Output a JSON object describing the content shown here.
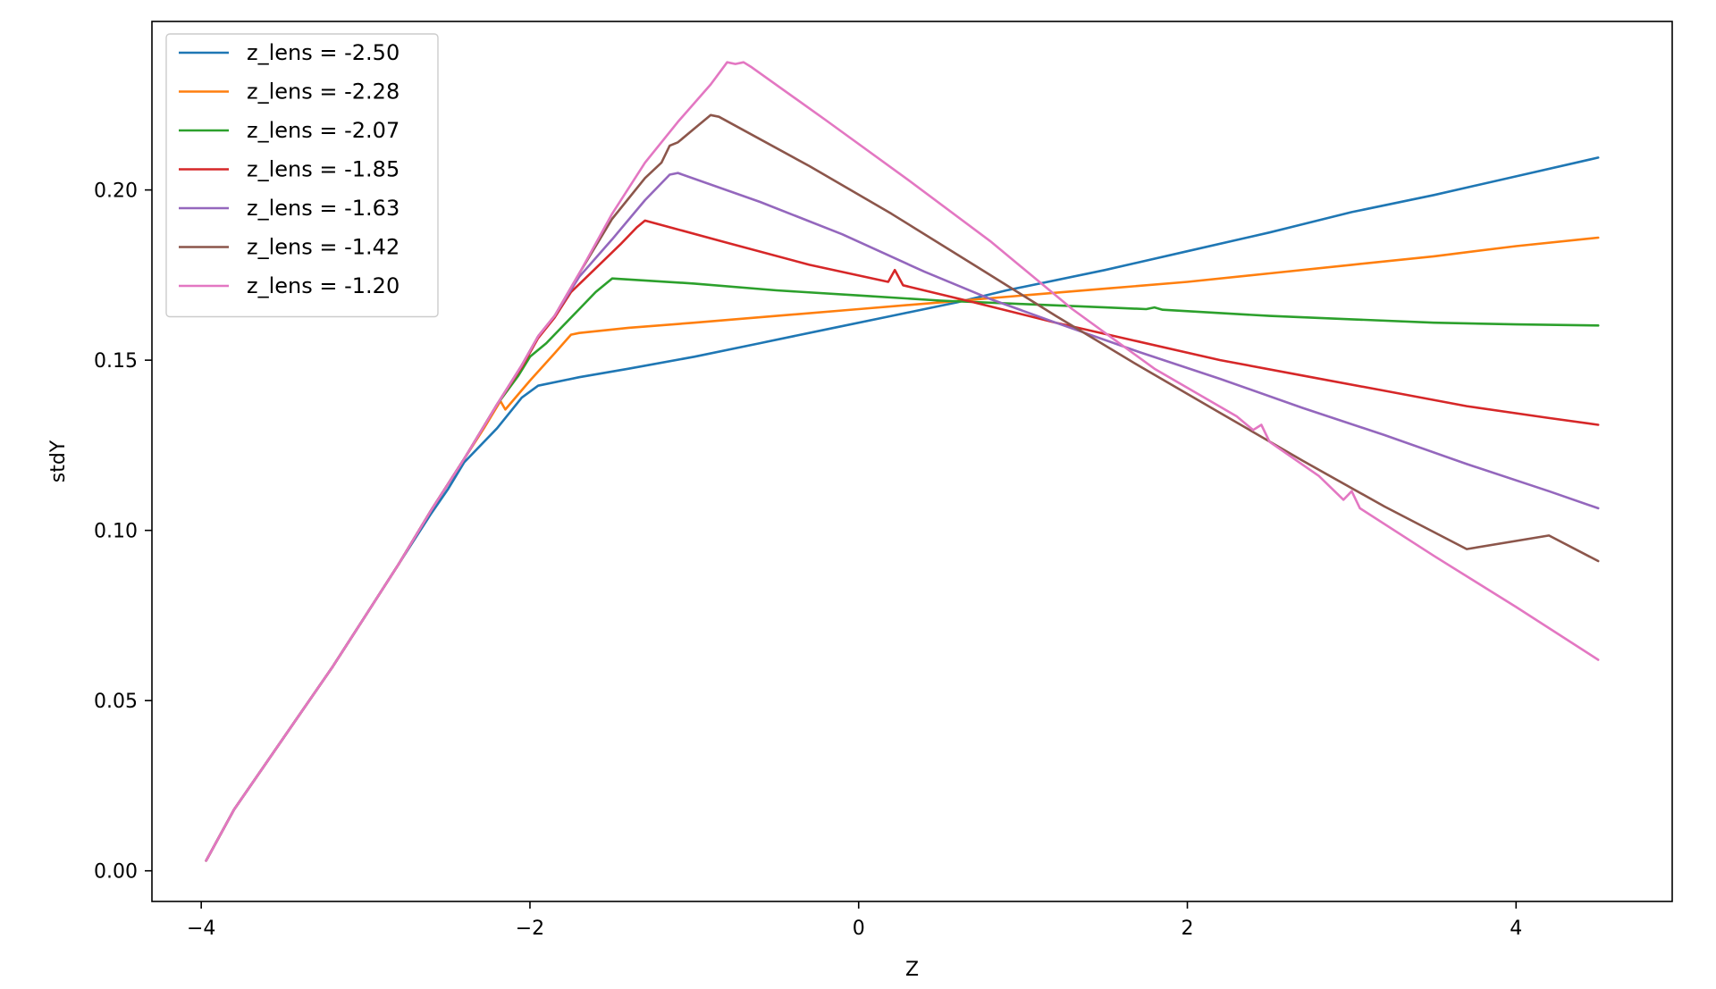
{
  "chart_data": {
    "type": "line",
    "title": "",
    "xlabel": "Z",
    "ylabel": "stdY",
    "xlim": [
      -4.3,
      4.95
    ],
    "ylim": [
      -0.009,
      0.2495
    ],
    "xticks": [
      -4,
      -2,
      0,
      2,
      4
    ],
    "xtick_labels": [
      "−4",
      "−2",
      "0",
      "2",
      "4"
    ],
    "yticks": [
      0.0,
      0.05,
      0.1,
      0.15,
      0.2
    ],
    "ytick_labels": [
      "0.00",
      "0.05",
      "0.10",
      "0.15",
      "0.20"
    ],
    "grid": false,
    "legend_position": "upper-left",
    "series": [
      {
        "name": "z_lens = -2.50",
        "color": "#1f77b4",
        "x": [
          -3.97,
          -3.8,
          -3.6,
          -3.4,
          -3.2,
          -3.0,
          -2.8,
          -2.6,
          -2.5,
          -2.4,
          -2.2,
          -2.05,
          -1.95,
          -1.7,
          -1.4,
          -1.0,
          -0.6,
          -0.2,
          0.2,
          0.6,
          0.9,
          1.5,
          2.0,
          2.5,
          3.0,
          3.5,
          4.0,
          4.5
        ],
        "y": [
          0.003,
          0.018,
          0.032,
          0.046,
          0.06,
          0.075,
          0.09,
          0.105,
          0.112,
          0.12,
          0.13,
          0.139,
          0.1425,
          0.145,
          0.1475,
          0.151,
          0.155,
          0.159,
          0.163,
          0.167,
          0.1705,
          0.1765,
          0.182,
          0.1875,
          0.1935,
          0.1985,
          0.204,
          0.2095
        ]
      },
      {
        "name": "z_lens = -2.28",
        "color": "#ff7f0e",
        "x": [
          -3.97,
          -3.8,
          -3.6,
          -3.4,
          -3.2,
          -3.0,
          -2.8,
          -2.6,
          -2.4,
          -2.28,
          -2.18,
          -2.15,
          -2.0,
          -1.85,
          -1.75,
          -1.7,
          -1.4,
          -1.0,
          -0.5,
          0.0,
          0.5,
          1.0,
          1.5,
          2.0,
          2.5,
          3.0,
          3.5,
          4.0,
          4.5
        ],
        "y": [
          0.003,
          0.018,
          0.032,
          0.046,
          0.06,
          0.075,
          0.09,
          0.106,
          0.121,
          0.13,
          0.138,
          0.1355,
          0.144,
          0.152,
          0.1575,
          0.158,
          0.1595,
          0.161,
          0.163,
          0.165,
          0.167,
          0.169,
          0.171,
          0.173,
          0.1755,
          0.178,
          0.1805,
          0.1835,
          0.186
        ]
      },
      {
        "name": "z_lens = -2.07",
        "color": "#2ca02c",
        "x": [
          -3.97,
          -3.8,
          -3.6,
          -3.4,
          -3.2,
          -3.0,
          -2.8,
          -2.6,
          -2.4,
          -2.2,
          -2.07,
          -2.0,
          -1.9,
          -1.8,
          -1.7,
          -1.6,
          -1.5,
          -1.0,
          -0.5,
          0.0,
          0.5,
          1.0,
          1.5,
          1.75,
          1.8,
          1.85,
          2.5,
          3.0,
          3.5,
          4.0,
          4.5
        ],
        "y": [
          0.003,
          0.018,
          0.032,
          0.046,
          0.06,
          0.075,
          0.09,
          0.106,
          0.121,
          0.137,
          0.1455,
          0.151,
          0.155,
          0.16,
          0.165,
          0.17,
          0.174,
          0.1725,
          0.1705,
          0.169,
          0.1675,
          0.1665,
          0.1655,
          0.165,
          0.1655,
          0.1648,
          0.163,
          0.162,
          0.161,
          0.1605,
          0.1602
        ]
      },
      {
        "name": "z_lens = -1.85",
        "color": "#d62728",
        "x": [
          -3.97,
          -3.8,
          -3.6,
          -3.4,
          -3.2,
          -3.0,
          -2.8,
          -2.6,
          -2.4,
          -2.2,
          -2.05,
          -1.95,
          -1.85,
          -1.75,
          -1.6,
          -1.45,
          -1.35,
          -1.3,
          -0.8,
          -0.3,
          0.18,
          0.22,
          0.27,
          0.7,
          1.2,
          1.7,
          2.2,
          2.7,
          3.2,
          3.7,
          4.2,
          4.5
        ],
        "y": [
          0.003,
          0.018,
          0.032,
          0.046,
          0.06,
          0.075,
          0.09,
          0.106,
          0.121,
          0.137,
          0.148,
          0.1565,
          0.1625,
          0.17,
          0.177,
          0.184,
          0.189,
          0.191,
          0.1845,
          0.178,
          0.173,
          0.1765,
          0.172,
          0.167,
          0.161,
          0.1555,
          0.15,
          0.1455,
          0.141,
          0.1365,
          0.133,
          0.131
        ]
      },
      {
        "name": "z_lens = -1.63",
        "color": "#9467bd",
        "x": [
          -3.97,
          -3.8,
          -3.6,
          -3.4,
          -3.2,
          -3.0,
          -2.8,
          -2.6,
          -2.4,
          -2.2,
          -2.05,
          -1.95,
          -1.85,
          -1.7,
          -1.5,
          -1.3,
          -1.15,
          -1.1,
          -0.6,
          -0.1,
          0.4,
          0.8,
          1.2,
          1.7,
          2.2,
          2.7,
          3.2,
          3.7,
          4.2,
          4.5
        ],
        "y": [
          0.003,
          0.018,
          0.032,
          0.046,
          0.06,
          0.075,
          0.09,
          0.106,
          0.121,
          0.137,
          0.1485,
          0.157,
          0.163,
          0.1745,
          0.1855,
          0.197,
          0.2045,
          0.205,
          0.1965,
          0.187,
          0.176,
          0.168,
          0.161,
          0.1525,
          0.1445,
          0.136,
          0.128,
          0.1195,
          0.1115,
          0.1065
        ]
      },
      {
        "name": "z_lens = -1.42",
        "color": "#8c564b",
        "x": [
          -3.97,
          -3.8,
          -3.6,
          -3.4,
          -3.2,
          -3.0,
          -2.8,
          -2.6,
          -2.4,
          -2.2,
          -2.05,
          -1.95,
          -1.85,
          -1.7,
          -1.5,
          -1.3,
          -1.2,
          -1.15,
          -1.1,
          -1.0,
          -0.9,
          -0.85,
          -0.3,
          0.2,
          0.7,
          1.2,
          1.7,
          2.2,
          2.7,
          3.2,
          3.7,
          4.2,
          4.5
        ],
        "y": [
          0.003,
          0.018,
          0.032,
          0.046,
          0.06,
          0.075,
          0.09,
          0.106,
          0.121,
          0.137,
          0.1485,
          0.157,
          0.163,
          0.1755,
          0.1915,
          0.2035,
          0.208,
          0.213,
          0.214,
          0.218,
          0.222,
          0.2215,
          0.207,
          0.193,
          0.178,
          0.163,
          0.1485,
          0.1345,
          0.1205,
          0.107,
          0.0945,
          0.0985,
          0.091
        ]
      },
      {
        "name": "z_lens = -1.20",
        "color": "#e377c2",
        "x": [
          -3.97,
          -3.8,
          -3.6,
          -3.4,
          -3.2,
          -3.0,
          -2.8,
          -2.6,
          -2.4,
          -2.2,
          -2.05,
          -1.95,
          -1.85,
          -1.7,
          -1.5,
          -1.3,
          -1.1,
          -0.9,
          -0.8,
          -0.75,
          -0.7,
          -0.65,
          -0.2,
          0.3,
          0.8,
          1.3,
          1.8,
          2.3,
          2.4,
          2.45,
          2.5,
          2.8,
          2.95,
          3.0,
          3.05,
          3.5,
          4.0,
          4.5
        ],
        "y": [
          0.003,
          0.018,
          0.032,
          0.046,
          0.06,
          0.075,
          0.09,
          0.106,
          0.121,
          0.137,
          0.1485,
          0.157,
          0.163,
          0.1755,
          0.193,
          0.208,
          0.22,
          0.231,
          0.2375,
          0.237,
          0.2375,
          0.236,
          0.2205,
          0.203,
          0.185,
          0.165,
          0.1475,
          0.1335,
          0.1295,
          0.131,
          0.126,
          0.116,
          0.109,
          0.1115,
          0.1065,
          0.0925,
          0.0775,
          0.062
        ]
      }
    ]
  }
}
